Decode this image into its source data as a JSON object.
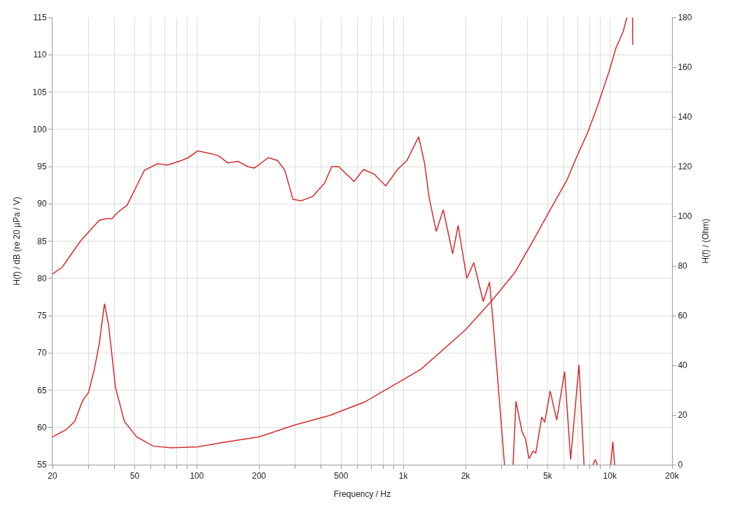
{
  "chart_data": {
    "type": "line",
    "xlabel": "Frequency / Hz",
    "ylabel": "H(f) / dB (re 20 µPa / V)",
    "y2label": "H(f) / (Ohm)",
    "log": "x",
    "grid": true,
    "marker": "none",
    "line_style": "solid",
    "xlim": [
      20,
      20000
    ],
    "xticks": [
      20,
      {
        "value": 30,
        "label": null
      },
      {
        "value": 40,
        "label": null
      },
      50,
      {
        "value": 60,
        "label": null
      },
      {
        "value": 70,
        "label": null
      },
      {
        "value": 80,
        "label": null
      },
      {
        "value": 90,
        "label": null
      },
      100,
      200,
      {
        "value": 300,
        "label": null
      },
      {
        "value": 400,
        "label": null
      },
      500,
      {
        "value": 600,
        "label": null
      },
      {
        "value": 700,
        "label": null
      },
      {
        "value": 800,
        "label": null
      },
      {
        "value": 900,
        "label": null
      },
      {
        "value": 1000,
        "label": "1k"
      },
      {
        "value": 2000,
        "label": "2k"
      },
      {
        "value": 3000,
        "label": null
      },
      {
        "value": 4000,
        "label": null
      },
      {
        "value": 5000,
        "label": "5k"
      },
      {
        "value": 6000,
        "label": null
      },
      {
        "value": 7000,
        "label": null
      },
      {
        "value": 8000,
        "label": null
      },
      {
        "value": 9000,
        "label": null
      },
      {
        "value": 10000,
        "label": "10k"
      },
      {
        "value": 20000,
        "label": "20k"
      }
    ],
    "ylim": [
      55,
      115
    ],
    "yticks": [
      55,
      60,
      65,
      70,
      75,
      80,
      85,
      90,
      95,
      100,
      105,
      110,
      115
    ],
    "y2lim": [
      0,
      180
    ],
    "y2ticks": [
      0,
      20,
      40,
      60,
      80,
      100,
      120,
      140,
      160,
      180
    ],
    "series": [
      {
        "color": "#d42a2a",
        "x": [
          20,
          22.3,
          27.3,
          33.7,
          36.3,
          38.8,
          41.5,
          45.9,
          50.9,
          55.7,
          64.8,
          71.9,
          84,
          91,
          101,
          118.6,
          128.3,
          140.9,
          158.5,
          176,
          189.8,
          221.9,
          246.4,
          266.7,
          292.2,
          320,
          364,
          416,
          450,
          486,
          577,
          641,
          721,
          822,
          937,
          1040,
          1186,
          1266,
          1334,
          1443,
          1561,
          1733,
          1842,
          2029,
          2195,
          2437,
          2615,
          2742,
          3090,
          3250,
          3400,
          3510,
          3760,
          3900,
          4060,
          4250,
          4380,
          4680,
          4840,
          5140,
          5530,
          6040,
          6460,
          7090,
          7500,
          8000,
          8300,
          8500,
          8700,
          9500,
          10100,
          10340,
          10550
        ],
        "values": [
          80.6,
          81.5,
          85,
          87.8,
          88,
          88,
          88.9,
          89.8,
          92.3,
          94.5,
          95.4,
          95.2,
          95.8,
          96.2,
          97.1,
          96.7,
          96.4,
          95.5,
          95.7,
          95,
          94.8,
          96.2,
          95.8,
          94.5,
          90.6,
          90.4,
          91,
          92.8,
          95,
          95,
          93,
          94.6,
          94,
          92.4,
          94.6,
          95.8,
          99,
          95.5,
          90.8,
          86.3,
          89.2,
          83.3,
          87.1,
          80,
          82.1,
          76.9,
          79.5,
          73,
          55,
          null,
          55,
          63.5,
          59.4,
          58.5,
          55.8,
          56.8,
          56.6,
          61.4,
          60.7,
          64.9,
          61,
          67.5,
          55.7,
          68.4,
          55,
          null,
          55,
          55.7,
          55,
          null,
          55,
          58.1,
          55
        ]
      },
      {
        "color": "#d42a2a",
        "axis": "y2",
        "x": [
          20,
          23.3,
          25.6,
          28,
          29.9,
          31.9,
          33.7,
          35.7,
          37.4,
          40.4,
          44.6,
          51.1,
          61.4,
          74.6,
          101,
          135,
          200,
          296,
          438,
          648,
          1217,
          2000,
          2680,
          3470,
          4280,
          5140,
          6200,
          7040,
          7820,
          8690,
          9900,
          10700,
          11600,
          12100,
          12500,
          12900,
          12900
        ],
        "values": [
          11.2,
          14.1,
          17.4,
          25.8,
          29.1,
          38.4,
          48.8,
          64.8,
          56.2,
          30.9,
          17.4,
          11.2,
          7.5,
          6.8,
          7.2,
          9,
          11.2,
          15.9,
          19.8,
          25.2,
          38.4,
          54.3,
          66,
          77.4,
          90.6,
          102.6,
          114.6,
          125.4,
          133.8,
          144,
          158.1,
          167.7,
          174.3,
          180,
          null,
          180,
          169
        ]
      }
    ]
  }
}
